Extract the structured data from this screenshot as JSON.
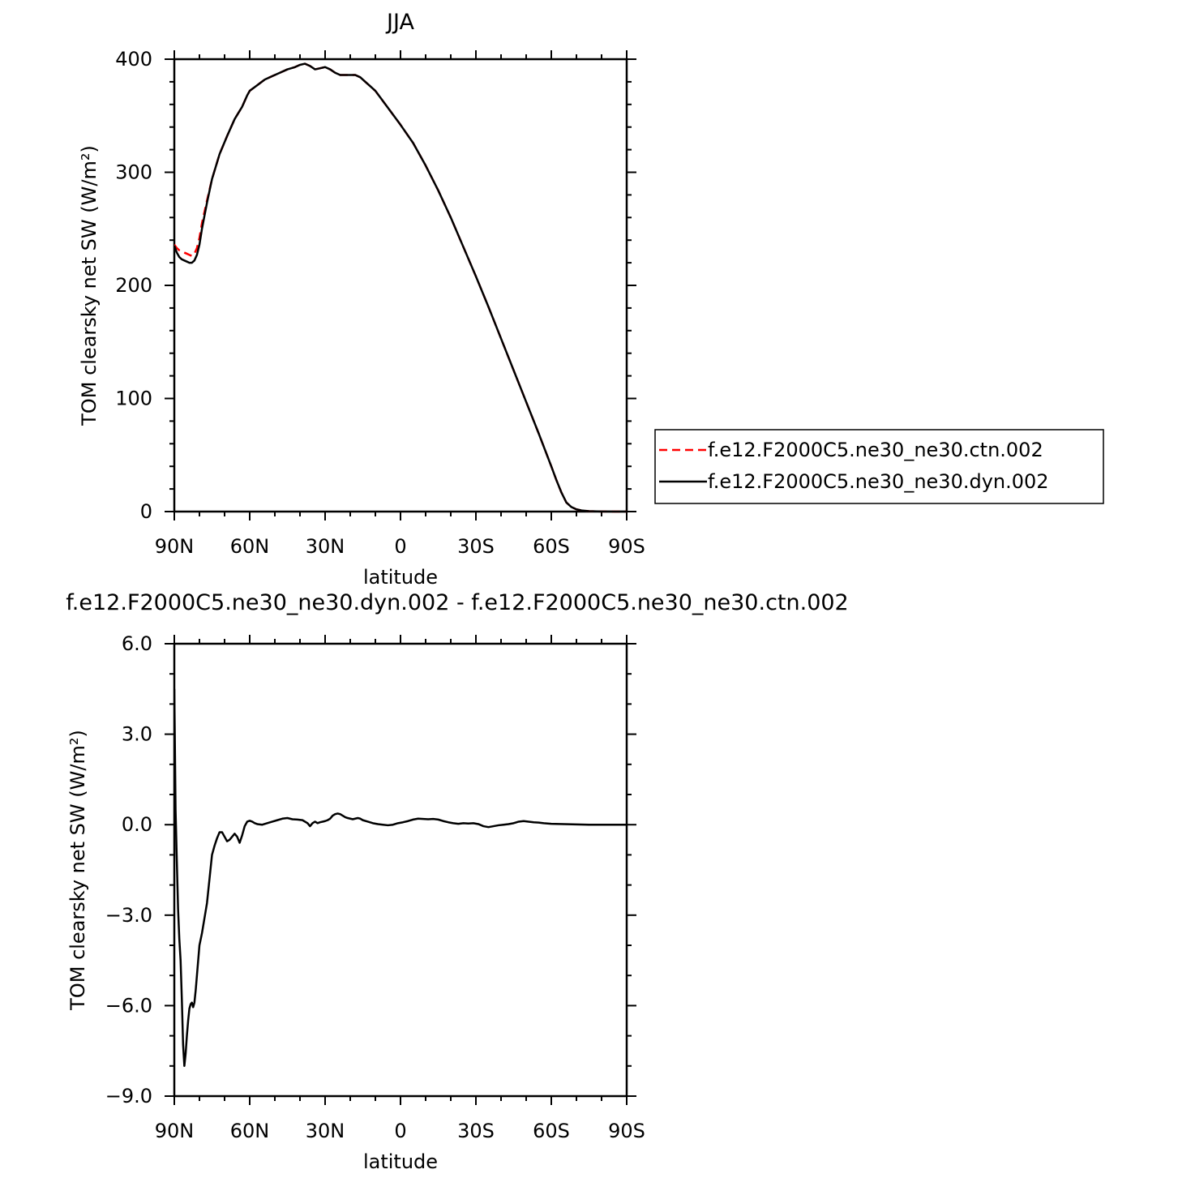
{
  "chart_data": [
    {
      "type": "line",
      "title": "JJA",
      "xlabel": "latitude",
      "ylabel": "TOM clearsky net SW (W/m²)",
      "x_tick_labels": [
        "90N",
        "60N",
        "30N",
        "0",
        "30S",
        "60S",
        "90S"
      ],
      "x_ticks": [
        90,
        60,
        30,
        0,
        -30,
        -60,
        -90
      ],
      "xlim": [
        90,
        -90
      ],
      "ylim": [
        0,
        400
      ],
      "y_ticks": [
        0,
        100,
        200,
        300,
        400
      ],
      "y_tick_labels": [
        "0",
        "100",
        "200",
        "300",
        "400"
      ],
      "grid": false,
      "legend_placement": "right",
      "x": [
        90,
        89,
        88,
        87,
        86,
        85,
        84,
        83,
        82,
        81,
        80,
        79,
        77,
        75,
        72,
        69,
        66,
        63,
        61,
        60,
        57,
        54,
        51,
        48,
        45,
        42,
        40,
        38,
        36,
        34,
        32,
        30,
        28,
        26,
        24,
        22,
        20,
        18,
        16,
        14,
        12,
        10,
        8,
        6,
        4,
        2,
        0,
        -5,
        -10,
        -15,
        -20,
        -25,
        -30,
        -35,
        -40,
        -45,
        -50,
        -55,
        -60,
        -62,
        -64,
        -66,
        -68,
        -70,
        -72,
        -75,
        -80,
        -85,
        -90
      ],
      "series": [
        {
          "name": "f.e12.F2000C5.ne30_ne30.ctn.002",
          "color": "#ff0000",
          "dash": "dashed",
          "values": [
            236,
            233,
            231,
            230,
            229,
            228,
            227,
            226,
            228,
            233,
            242,
            255,
            275,
            294,
            316,
            332,
            347,
            358,
            368,
            372,
            377,
            382,
            385,
            388,
            391,
            393,
            395,
            396,
            394,
            391,
            392,
            393,
            391,
            388,
            386,
            386,
            386,
            386,
            384,
            380,
            376,
            372,
            366,
            360,
            354,
            348,
            342,
            326,
            306,
            284,
            260,
            234,
            208,
            181,
            153,
            125,
            97,
            69,
            40,
            28,
            17,
            8,
            4,
            2,
            1,
            0.4,
            0.1,
            0,
            0
          ]
        },
        {
          "name": "f.e12.F2000C5.ne30_ne30.dyn.002",
          "color": "#000000",
          "dash": "solid",
          "values": [
            235,
            229,
            225,
            223,
            222,
            221,
            220,
            220,
            222,
            227,
            236,
            250,
            273,
            294,
            316,
            332,
            347,
            358,
            368,
            372,
            377,
            382,
            385,
            388,
            391,
            393,
            395,
            396,
            394,
            391,
            392,
            393,
            391,
            388,
            386,
            386,
            386,
            386,
            384,
            380,
            376,
            372,
            366,
            360,
            354,
            348,
            342,
            326,
            306,
            284,
            260,
            234,
            208,
            181,
            153,
            125,
            97,
            69,
            40,
            28,
            17,
            8,
            4,
            2,
            1,
            0.4,
            0.1,
            0,
            0
          ]
        }
      ]
    },
    {
      "type": "line",
      "title": "f.e12.F2000C5.ne30_ne30.dyn.002 - f.e12.F2000C5.ne30_ne30.ctn.002",
      "xlabel": "latitude",
      "ylabel": "TOM clearsky net SW (W/m²)",
      "x_tick_labels": [
        "90N",
        "60N",
        "30N",
        "0",
        "30S",
        "60S",
        "90S"
      ],
      "x_ticks": [
        90,
        60,
        30,
        0,
        -30,
        -60,
        -90
      ],
      "xlim": [
        90,
        -90
      ],
      "ylim": [
        -9,
        6
      ],
      "y_ticks": [
        -9,
        -6,
        -3,
        0,
        3,
        6
      ],
      "y_tick_labels": [
        "−9.0",
        "−6.0",
        "−3.0",
        "0.0",
        "3.0",
        "6.0"
      ],
      "grid": false,
      "x": [
        90,
        89.5,
        89,
        88.5,
        88,
        87.5,
        87,
        86.5,
        86,
        85.5,
        85,
        84.5,
        84,
        83.5,
        83,
        82.5,
        82,
        81.5,
        81,
        80,
        79,
        78,
        77,
        76,
        75,
        74,
        73,
        72,
        71,
        70,
        69,
        68,
        67,
        66,
        65,
        64,
        63,
        62,
        61,
        60,
        59,
        58,
        57,
        55,
        53,
        51,
        49,
        47,
        45,
        43,
        41,
        39,
        37,
        36,
        35,
        34,
        33,
        32,
        31,
        30,
        29,
        28,
        27,
        26,
        25,
        24,
        23,
        22,
        21,
        20,
        19,
        18,
        17,
        16,
        15,
        13,
        11,
        9,
        7,
        5,
        3,
        1,
        -1,
        -3,
        -5,
        -7,
        -9,
        -11,
        -13,
        -15,
        -17,
        -19,
        -21,
        -23,
        -25,
        -27,
        -29,
        -31,
        -33,
        -35,
        -37,
        -39,
        -41,
        -43,
        -45,
        -47,
        -49,
        -51,
        -53,
        -55,
        -57,
        -60,
        -65,
        -70,
        -75,
        -80,
        -85,
        -90
      ],
      "series": [
        {
          "values": [
            4.5,
            0.5,
            -1.2,
            -2.8,
            -3.8,
            -4.5,
            -5.8,
            -7.3,
            -8.0,
            -7.6,
            -7.0,
            -6.5,
            -6.1,
            -5.95,
            -5.9,
            -6.05,
            -5.9,
            -5.5,
            -5.0,
            -4.0,
            -3.6,
            -3.1,
            -2.6,
            -1.8,
            -1.0,
            -0.7,
            -0.45,
            -0.25,
            -0.25,
            -0.4,
            -0.55,
            -0.5,
            -0.4,
            -0.3,
            -0.4,
            -0.6,
            -0.35,
            -0.05,
            0.1,
            0.13,
            0.1,
            0.05,
            0.02,
            0.0,
            0.05,
            0.1,
            0.15,
            0.2,
            0.22,
            0.18,
            0.17,
            0.15,
            0.05,
            -0.05,
            0.05,
            0.1,
            0.05,
            0.08,
            0.1,
            0.12,
            0.15,
            0.2,
            0.3,
            0.35,
            0.37,
            0.35,
            0.3,
            0.25,
            0.22,
            0.2,
            0.18,
            0.2,
            0.22,
            0.2,
            0.15,
            0.1,
            0.05,
            0.02,
            0.0,
            -0.02,
            0.0,
            0.05,
            0.08,
            0.12,
            0.17,
            0.2,
            0.19,
            0.18,
            0.19,
            0.17,
            0.12,
            0.08,
            0.05,
            0.03,
            0.05,
            0.04,
            0.05,
            0.02,
            -0.05,
            -0.08,
            -0.05,
            -0.02,
            0.0,
            0.02,
            0.05,
            0.1,
            0.12,
            0.1,
            0.08,
            0.07,
            0.05,
            0.03,
            0.02,
            0.01,
            0.0,
            0.0,
            0.0,
            0.0
          ]
        }
      ]
    }
  ]
}
